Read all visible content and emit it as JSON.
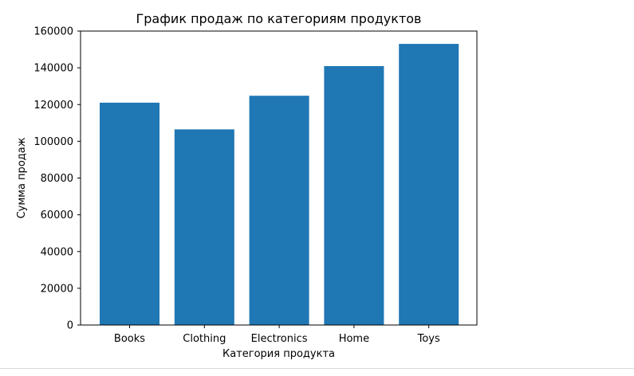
{
  "chart_data": {
    "type": "bar",
    "title": "График продаж по категориям продуктов",
    "xlabel": "Категория продукта",
    "ylabel": "Сумма продаж",
    "categories": [
      "Books",
      "Clothing",
      "Electronics",
      "Home",
      "Toys"
    ],
    "values": [
      121000,
      106500,
      124800,
      140900,
      153000
    ],
    "ylim": [
      0,
      160000
    ],
    "yticks": [
      0,
      20000,
      40000,
      60000,
      80000,
      100000,
      120000,
      140000,
      160000
    ],
    "ytick_labels": [
      "0",
      "20000",
      "40000",
      "60000",
      "80000",
      "100000",
      "120000",
      "140000",
      "160000"
    ],
    "bar_color": "#1f77b4",
    "grid": false,
    "legend": "none"
  }
}
